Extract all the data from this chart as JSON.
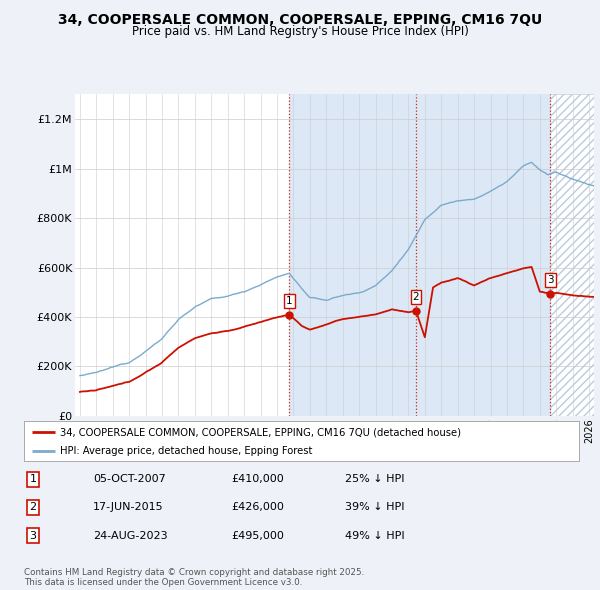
{
  "title": "34, COOPERSALE COMMON, COOPERSALE, EPPING, CM16 7QU",
  "subtitle": "Price paid vs. HM Land Registry's House Price Index (HPI)",
  "hpi_color": "#7aabcc",
  "price_color": "#cc1100",
  "background_color": "#eef2f8",
  "plot_bg": "#ffffff",
  "shade_color": "#dce8f5",
  "ylim": [
    0,
    1300000
  ],
  "yticks": [
    0,
    200000,
    400000,
    600000,
    800000,
    1000000,
    1200000
  ],
  "ytick_labels": [
    "£0",
    "£200K",
    "£400K",
    "£600K",
    "£800K",
    "£1M",
    "£1.2M"
  ],
  "sale_year_floats": [
    2007.755,
    2015.46,
    2023.647
  ],
  "sale_prices": [
    410000,
    426000,
    495000
  ],
  "sale_labels": [
    "1",
    "2",
    "3"
  ],
  "table_rows": [
    [
      "1",
      "05-OCT-2007",
      "£410,000",
      "25% ↓ HPI"
    ],
    [
      "2",
      "17-JUN-2015",
      "£426,000",
      "39% ↓ HPI"
    ],
    [
      "3",
      "24-AUG-2023",
      "£495,000",
      "49% ↓ HPI"
    ]
  ],
  "legend_labels": [
    "34, COOPERSALE COMMON, COOPERSALE, EPPING, CM16 7QU (detached house)",
    "HPI: Average price, detached house, Epping Forest"
  ],
  "footnote": "Contains HM Land Registry data © Crown copyright and database right 2025.\nThis data is licensed under the Open Government Licence v3.0.",
  "xlim_left": 1994.7,
  "xlim_right": 2026.3
}
